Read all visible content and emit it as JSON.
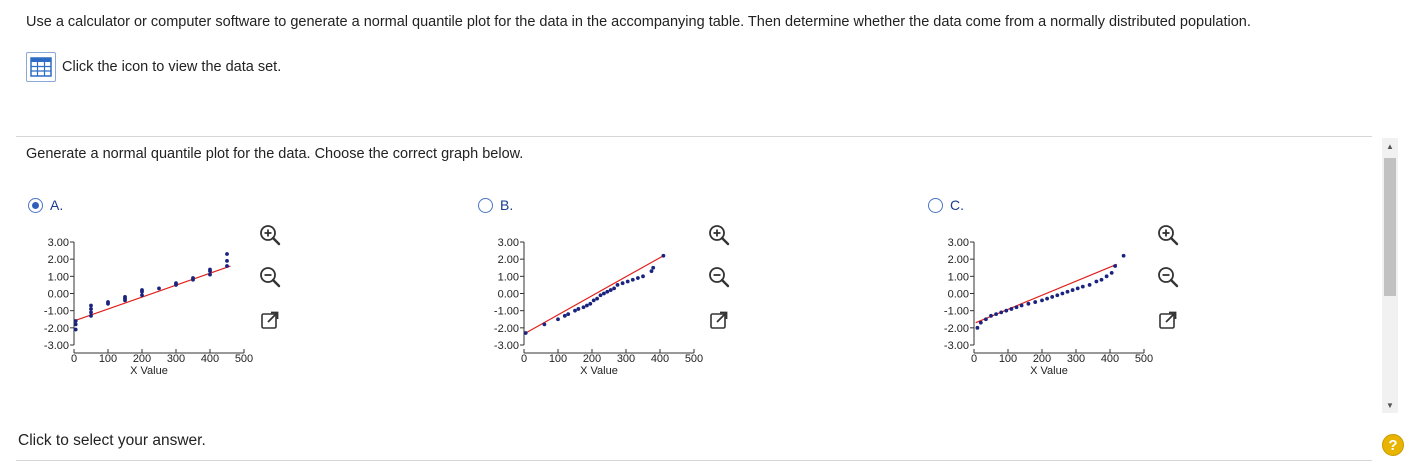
{
  "question": {
    "text": "Use a calculator or computer software to generate a normal quantile plot for the data in the accompanying table. Then determine whether the data come from a normally distributed population."
  },
  "dataset_link": {
    "label": "Click the icon to view the data set.",
    "icon": "table-grid-icon"
  },
  "prompt": "Generate a normal quantile plot for the data. Choose the correct graph below.",
  "options": [
    {
      "letter": "A.",
      "selected": true
    },
    {
      "letter": "B.",
      "selected": false
    },
    {
      "letter": "C.",
      "selected": false
    }
  ],
  "chart_data": [
    {
      "type": "scatter",
      "xlabel": "X Value",
      "xticks": [
        "0",
        "100",
        "200",
        "300",
        "400",
        "500"
      ],
      "yticks": [
        "3.00",
        "2.00",
        "1.00",
        "0.00",
        "-1.00",
        "-2.00",
        "-3.00"
      ],
      "xlim": [
        0,
        500
      ],
      "ylim": [
        -3,
        3
      ],
      "line": [
        [
          0,
          -1.6
        ],
        [
          460,
          1.6
        ]
      ],
      "points": [
        [
          5,
          -2.1
        ],
        [
          5,
          -1.8
        ],
        [
          5,
          -1.6
        ],
        [
          50,
          -1.3
        ],
        [
          50,
          -1.1
        ],
        [
          50,
          -0.9
        ],
        [
          50,
          -0.7
        ],
        [
          100,
          -0.6
        ],
        [
          100,
          -0.5
        ],
        [
          150,
          -0.4
        ],
        [
          150,
          -0.3
        ],
        [
          150,
          -0.2
        ],
        [
          200,
          -0.1
        ],
        [
          200,
          0.1
        ],
        [
          200,
          0.2
        ],
        [
          250,
          0.3
        ],
        [
          300,
          0.5
        ],
        [
          300,
          0.6
        ],
        [
          350,
          0.8
        ],
        [
          350,
          0.9
        ],
        [
          400,
          1.1
        ],
        [
          400,
          1.3
        ],
        [
          400,
          1.4
        ],
        [
          450,
          1.6
        ],
        [
          450,
          1.9
        ],
        [
          450,
          2.3
        ]
      ]
    },
    {
      "type": "scatter",
      "xlabel": "X Value",
      "xticks": [
        "0",
        "100",
        "200",
        "300",
        "400",
        "500"
      ],
      "yticks": [
        "3.00",
        "2.00",
        "1.00",
        "0.00",
        "-1.00",
        "-2.00",
        "-3.00"
      ],
      "xlim": [
        0,
        500
      ],
      "ylim": [
        -3,
        3
      ],
      "line": [
        [
          5,
          -2.3
        ],
        [
          410,
          2.2
        ]
      ],
      "points": [
        [
          5,
          -2.3
        ],
        [
          60,
          -1.8
        ],
        [
          100,
          -1.5
        ],
        [
          120,
          -1.3
        ],
        [
          130,
          -1.2
        ],
        [
          150,
          -1.0
        ],
        [
          160,
          -0.9
        ],
        [
          175,
          -0.8
        ],
        [
          185,
          -0.7
        ],
        [
          195,
          -0.6
        ],
        [
          205,
          -0.4
        ],
        [
          215,
          -0.3
        ],
        [
          225,
          -0.1
        ],
        [
          235,
          0.0
        ],
        [
          245,
          0.1
        ],
        [
          255,
          0.2
        ],
        [
          265,
          0.3
        ],
        [
          275,
          0.5
        ],
        [
          290,
          0.6
        ],
        [
          305,
          0.7
        ],
        [
          320,
          0.8
        ],
        [
          335,
          0.9
        ],
        [
          350,
          1.0
        ],
        [
          375,
          1.3
        ],
        [
          380,
          1.5
        ],
        [
          410,
          2.2
        ]
      ]
    },
    {
      "type": "scatter",
      "xlabel": "X Value",
      "xticks": [
        "0",
        "100",
        "200",
        "300",
        "400",
        "500"
      ],
      "yticks": [
        "3.00",
        "2.00",
        "1.00",
        "0.00",
        "-1.00",
        "-2.00",
        "-3.00"
      ],
      "xlim": [
        0,
        500
      ],
      "ylim": [
        -3,
        3
      ],
      "line": [
        [
          5,
          -1.7
        ],
        [
          420,
          1.7
        ]
      ],
      "points": [
        [
          10,
          -2.0
        ],
        [
          20,
          -1.7
        ],
        [
          35,
          -1.5
        ],
        [
          50,
          -1.3
        ],
        [
          65,
          -1.2
        ],
        [
          80,
          -1.1
        ],
        [
          95,
          -1.0
        ],
        [
          110,
          -0.9
        ],
        [
          125,
          -0.8
        ],
        [
          140,
          -0.7
        ],
        [
          160,
          -0.6
        ],
        [
          180,
          -0.5
        ],
        [
          200,
          -0.4
        ],
        [
          215,
          -0.3
        ],
        [
          230,
          -0.2
        ],
        [
          245,
          -0.1
        ],
        [
          260,
          0.0
        ],
        [
          275,
          0.1
        ],
        [
          290,
          0.2
        ],
        [
          305,
          0.3
        ],
        [
          320,
          0.4
        ],
        [
          340,
          0.5
        ],
        [
          360,
          0.7
        ],
        [
          375,
          0.8
        ],
        [
          390,
          1.0
        ],
        [
          405,
          1.2
        ],
        [
          415,
          1.6
        ],
        [
          440,
          2.2
        ]
      ]
    }
  ]
}
